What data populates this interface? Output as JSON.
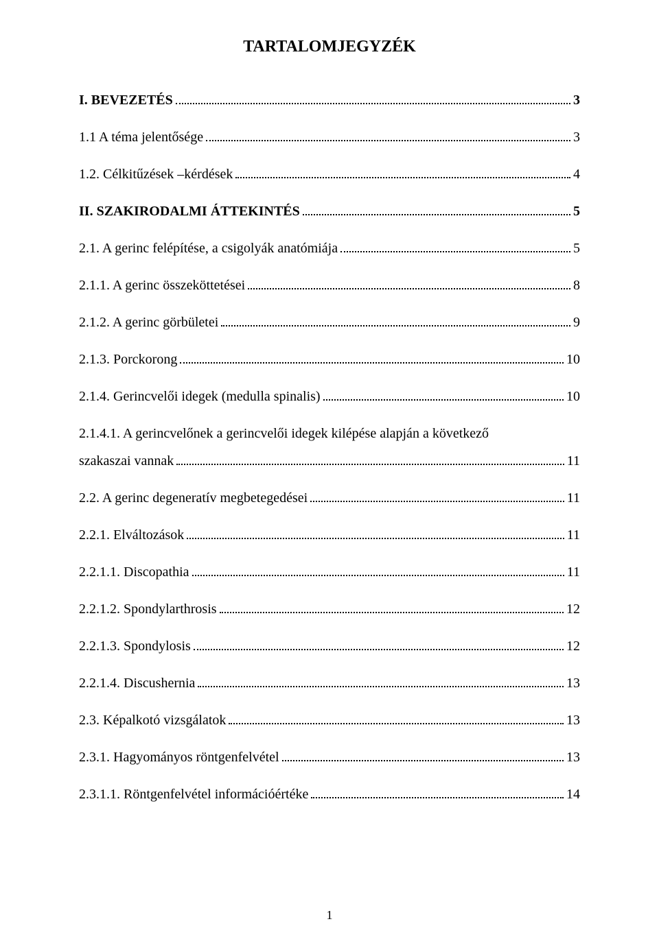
{
  "title": "TARTALOMJEGYZÉK",
  "page_number": "1",
  "background_color": "#ffffff",
  "text_color": "#000000",
  "font_family": "Times New Roman",
  "title_fontsize": 24,
  "body_fontsize": 20,
  "entries": [
    {
      "label": "I. BEVEZETÉS",
      "page": "3",
      "bold": true,
      "section_gap": false
    },
    {
      "label": "1.1 A téma jelentősége",
      "page": "3",
      "bold": false,
      "section_gap": false
    },
    {
      "label": "1.2. Célkitűzések –kérdések",
      "page": "4",
      "bold": false,
      "section_gap": false
    },
    {
      "label": "II. SZAKIRODALMI ÁTTEKINTÉS",
      "page": "5",
      "bold": true,
      "section_gap": true
    },
    {
      "label": "2.1. A gerinc felépítése, a csigolyák anatómiája",
      "page": "5",
      "bold": false,
      "section_gap": false
    },
    {
      "label": "2.1.1. A gerinc összeköttetései",
      "page": "8",
      "bold": false,
      "section_gap": false
    },
    {
      "label": "2.1.2. A gerinc görbületei",
      "page": "9",
      "bold": false,
      "section_gap": false
    },
    {
      "label": "2.1.3. Porckorong",
      "page": "10",
      "bold": false,
      "section_gap": false
    },
    {
      "label": "2.1.4. Gerincvelői idegek (medulla spinalis)",
      "page": "10",
      "bold": false,
      "section_gap": false
    },
    {
      "multiline": true,
      "first_line": "2.1.4.1. A gerincvelőnek a gerincvelői idegek kilépése alapján a következő",
      "second_label": "szakaszai vannak",
      "page": "11",
      "bold": false,
      "section_gap": false
    },
    {
      "label": "2.2. A gerinc degeneratív megbetegedései",
      "page": "11",
      "bold": false,
      "section_gap": false
    },
    {
      "label": "2.2.1. Elváltozások",
      "page": "11",
      "bold": false,
      "section_gap": false
    },
    {
      "label": "2.2.1.1. Discopathia",
      "page": "11",
      "bold": false,
      "section_gap": false
    },
    {
      "label": "2.2.1.2. Spondylarthrosis",
      "page": "12",
      "bold": false,
      "section_gap": false
    },
    {
      "label": "2.2.1.3. Spondylosis",
      "page": "12",
      "bold": false,
      "section_gap": false
    },
    {
      "label": "2.2.1.4. Discushernia",
      "page": "13",
      "bold": false,
      "section_gap": false
    },
    {
      "label": "2.3. Képalkotó vizsgálatok",
      "page": "13",
      "bold": false,
      "section_gap": false
    },
    {
      "label": "2.3.1. Hagyományos röntgenfelvétel",
      "page": "13",
      "bold": false,
      "section_gap": false
    },
    {
      "label": "2.3.1.1. Röntgenfelvétel információértéke",
      "page": "14",
      "bold": false,
      "section_gap": false
    }
  ]
}
